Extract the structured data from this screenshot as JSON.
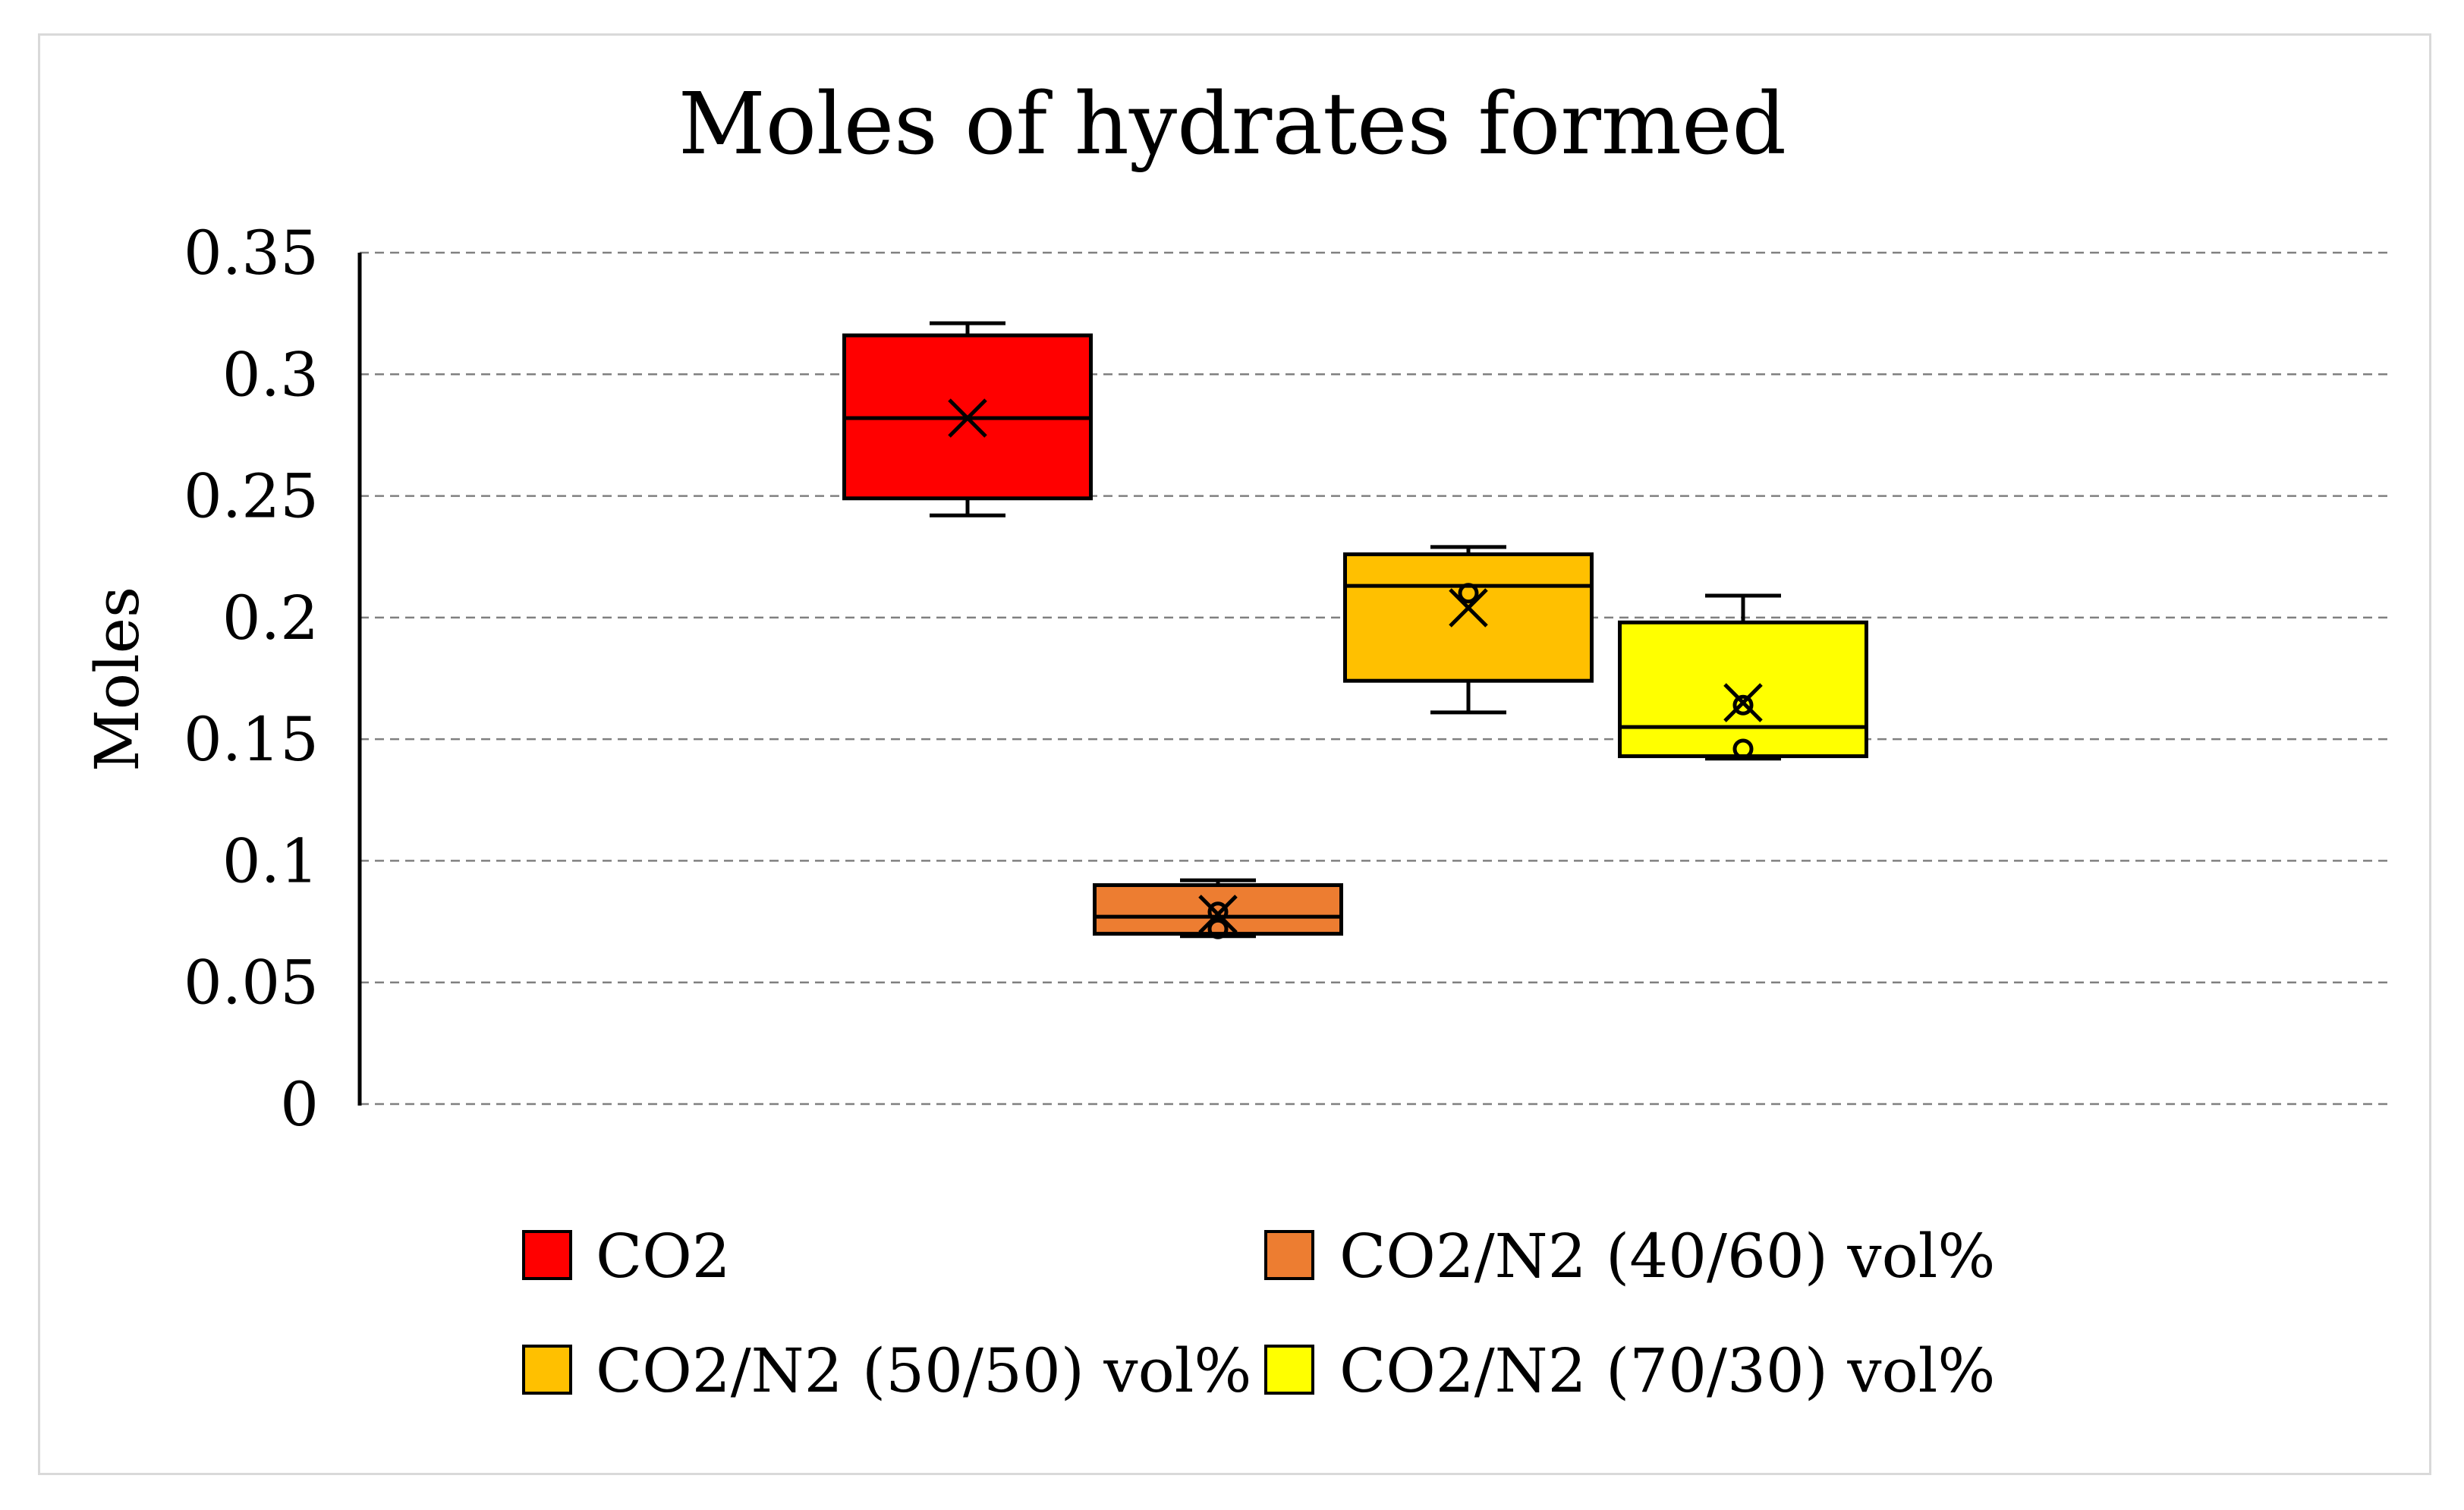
{
  "chart_data": {
    "type": "boxplot",
    "title": "Moles of hydrates formed",
    "xlabel": "",
    "ylabel": "Moles",
    "ylim": [
      0,
      0.35
    ],
    "yticks": [
      0,
      0.05,
      0.1,
      0.15,
      0.2,
      0.25,
      0.3,
      0.35
    ],
    "ytick_labels": [
      "0",
      "0.05",
      "0.1",
      "0.15",
      "0.2",
      "0.25",
      "0.3",
      "0.35"
    ],
    "grid": true,
    "legend_position": "bottom",
    "series": [
      {
        "name": "CO2",
        "color": "#ff0000",
        "min": 0.242,
        "q1": 0.249,
        "median": 0.282,
        "q3": 0.316,
        "max": 0.321,
        "mean": 0.282,
        "points": []
      },
      {
        "name": "CO2/N2 (40/60) vol%",
        "color": "#ed7d31",
        "min": 0.069,
        "q1": 0.07,
        "median": 0.077,
        "q3": 0.09,
        "max": 0.092,
        "mean": 0.078,
        "points": [
          0.079,
          0.072
        ]
      },
      {
        "name": "CO2/N2 (50/50) vol%",
        "color": "#ffc000",
        "min": 0.161,
        "q1": 0.174,
        "median": 0.213,
        "q3": 0.226,
        "max": 0.229,
        "mean": 0.204,
        "points": [
          0.21
        ]
      },
      {
        "name": "CO2/N2 (70/30) vol%",
        "color": "#ffff00",
        "min": 0.142,
        "q1": 0.143,
        "median": 0.155,
        "q3": 0.198,
        "max": 0.209,
        "mean": 0.165,
        "points": [
          0.164,
          0.146
        ]
      }
    ]
  }
}
